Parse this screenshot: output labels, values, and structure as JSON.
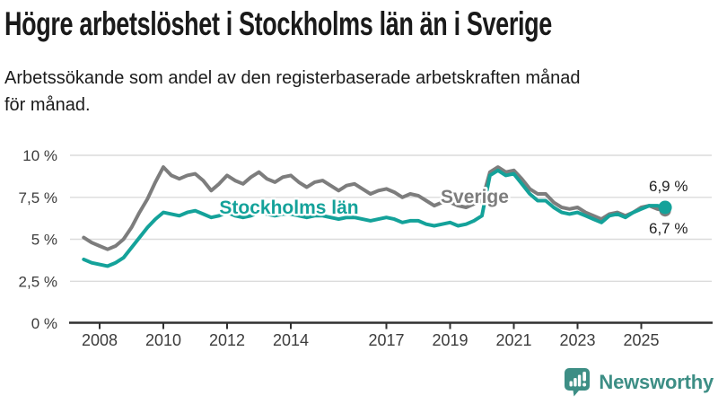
{
  "chart_data": {
    "type": "line",
    "title": "Högre arbetslöshet i Stockholms län än i Sverige",
    "subtitle": "Arbetssökande som andel av den registerbaserade arbetskraften månad för månad.",
    "unit": "%",
    "x_years": [
      2007.5,
      2007.75,
      2008,
      2008.25,
      2008.5,
      2008.75,
      2009,
      2009.25,
      2009.5,
      2009.75,
      2010,
      2010.25,
      2010.5,
      2010.75,
      2011,
      2011.25,
      2011.5,
      2011.75,
      2012,
      2012.25,
      2012.5,
      2012.75,
      2013,
      2013.25,
      2013.5,
      2013.75,
      2014,
      2014.25,
      2014.5,
      2014.75,
      2015,
      2015.25,
      2015.5,
      2015.75,
      2016,
      2016.25,
      2016.5,
      2016.75,
      2017,
      2017.25,
      2017.5,
      2017.75,
      2018,
      2018.25,
      2018.5,
      2018.75,
      2019,
      2019.25,
      2019.5,
      2019.75,
      2020,
      2020.25,
      2020.5,
      2020.75,
      2021,
      2021.25,
      2021.5,
      2021.75,
      2022,
      2022.25,
      2022.5,
      2022.75,
      2023,
      2023.25,
      2023.5,
      2023.75,
      2024,
      2024.25,
      2024.5,
      2024.75,
      2025,
      2025.25,
      2025.5,
      2025.75
    ],
    "series": [
      {
        "name": "Sverige",
        "color": "#7d7d7d",
        "end_label": "6,7 %",
        "values": [
          5.1,
          4.8,
          4.6,
          4.4,
          4.6,
          5.0,
          5.7,
          6.6,
          7.4,
          8.4,
          9.3,
          8.8,
          8.6,
          8.8,
          8.9,
          8.5,
          7.9,
          8.3,
          8.8,
          8.5,
          8.3,
          8.7,
          9.0,
          8.6,
          8.4,
          8.7,
          8.8,
          8.4,
          8.1,
          8.4,
          8.5,
          8.2,
          7.9,
          8.2,
          8.3,
          8.0,
          7.7,
          7.9,
          8.0,
          7.8,
          7.5,
          7.7,
          7.6,
          7.3,
          7.0,
          7.2,
          7.2,
          7.0,
          6.9,
          7.1,
          7.3,
          9.0,
          9.3,
          9.0,
          9.1,
          8.6,
          8.0,
          7.7,
          7.7,
          7.2,
          6.9,
          6.8,
          6.9,
          6.6,
          6.4,
          6.2,
          6.5,
          6.6,
          6.4,
          6.6,
          6.9,
          7.0,
          6.8,
          6.7
        ]
      },
      {
        "name": "Stockholms län",
        "color": "#14a29a",
        "end_label": "6,9 %",
        "values": [
          3.8,
          3.6,
          3.5,
          3.4,
          3.6,
          3.9,
          4.5,
          5.1,
          5.7,
          6.2,
          6.6,
          6.5,
          6.4,
          6.6,
          6.7,
          6.5,
          6.3,
          6.4,
          6.6,
          6.4,
          6.3,
          6.4,
          6.6,
          6.5,
          6.4,
          6.5,
          6.5,
          6.4,
          6.3,
          6.4,
          6.4,
          6.3,
          6.2,
          6.3,
          6.3,
          6.2,
          6.1,
          6.2,
          6.3,
          6.2,
          6.0,
          6.1,
          6.1,
          5.9,
          5.8,
          5.9,
          6.0,
          5.8,
          5.9,
          6.1,
          6.4,
          8.8,
          9.1,
          8.8,
          8.9,
          8.3,
          7.7,
          7.3,
          7.3,
          6.9,
          6.6,
          6.5,
          6.6,
          6.4,
          6.2,
          6.0,
          6.4,
          6.5,
          6.3,
          6.6,
          6.8,
          7.0,
          7.0,
          6.9
        ]
      }
    ],
    "y_ticks": [
      {
        "value": 0,
        "label": "0 %"
      },
      {
        "value": 2.5,
        "label": "2,5 %"
      },
      {
        "value": 5,
        "label": "5 %"
      },
      {
        "value": 7.5,
        "label": "7,5 %"
      },
      {
        "value": 10,
        "label": "10 %"
      }
    ],
    "x_ticks": [
      {
        "value": 2008,
        "label": "2008"
      },
      {
        "value": 2010,
        "label": "2010"
      },
      {
        "value": 2012,
        "label": "2012"
      },
      {
        "value": 2014,
        "label": "2014"
      },
      {
        "value": 2017,
        "label": "2017"
      },
      {
        "value": 2019,
        "label": "2019"
      },
      {
        "value": 2021,
        "label": "2021"
      },
      {
        "value": 2023,
        "label": "2023"
      },
      {
        "value": 2025,
        "label": "2025"
      }
    ],
    "ylim": [
      0,
      10.7
    ],
    "xlim": [
      2007.1,
      2026.2
    ],
    "grid": true,
    "legend": "inline-labels",
    "style": {
      "grid_color": "#dbdbdb",
      "axis_color": "#303030",
      "tick_label_color": "#3c3c3c",
      "value_label_color": "#222222",
      "background": "#ffffff"
    }
  },
  "footer": {
    "brand": "Newsworthy",
    "brand_color": "#3d8e85"
  }
}
